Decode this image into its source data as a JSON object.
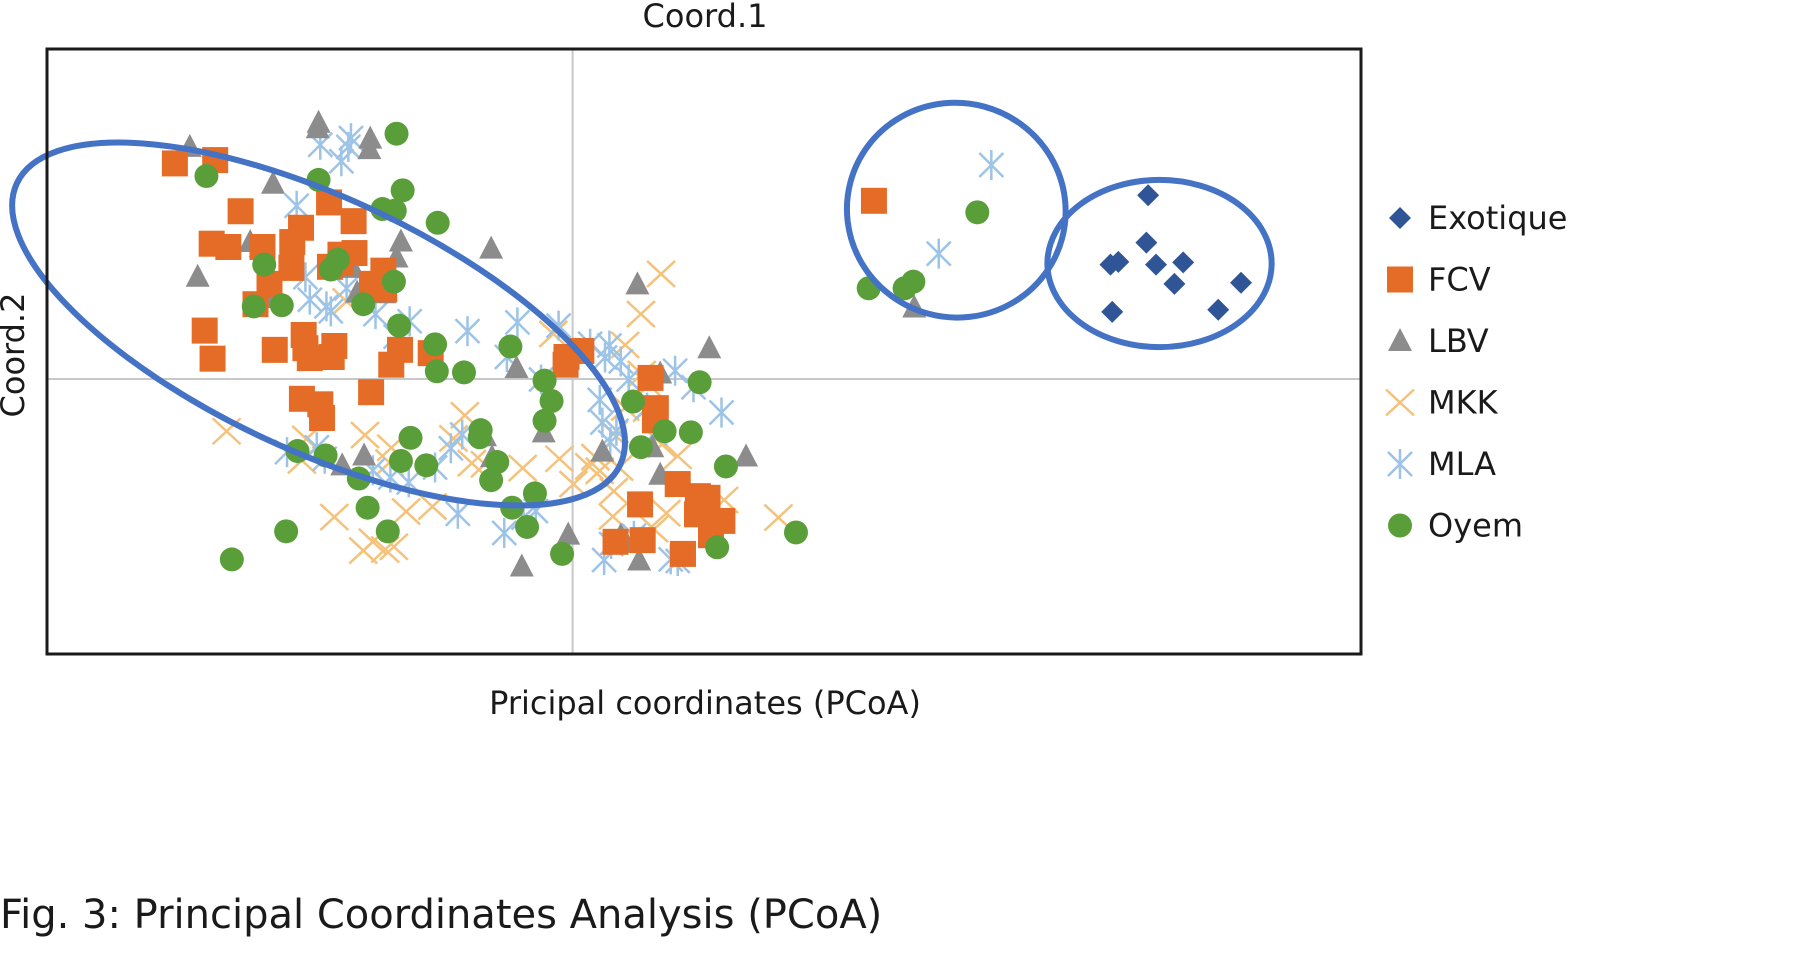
{
  "caption": "Fig. 3: Principal Coordinates Analysis (PCoA)",
  "chart_data": {
    "type": "scatter",
    "title": "Coord.1",
    "xlabel": "Pricipal coordinates (PCoA)",
    "ylabel": "Coord.2",
    "xlim": [
      -0.6,
      0.9
    ],
    "ylim": [
      -0.5,
      0.6
    ],
    "axis_lines_at": [
      0,
      0
    ],
    "tick_labels": false,
    "grid": false,
    "legend": "right",
    "group_ellipse_color": "#4472c4",
    "groups": [
      {
        "cx": -0.29,
        "cy": 0.1,
        "rx": 0.38,
        "ry": 0.23,
        "angle": 25
      },
      {
        "cx": 0.438,
        "cy": 0.307,
        "rx": 0.125,
        "ry": 0.195,
        "angle": 15
      },
      {
        "cx": 0.67,
        "cy": 0.21,
        "rx": 0.128,
        "ry": 0.152,
        "angle": 0
      }
    ],
    "series": [
      {
        "name": "Exotique",
        "color": "#2f5597",
        "marker": "diamond",
        "points": [
          [
            0.657,
            0.334
          ],
          [
            0.614,
            0.208
          ],
          [
            0.623,
            0.213
          ],
          [
            0.655,
            0.248
          ],
          [
            0.666,
            0.208
          ],
          [
            0.697,
            0.212
          ],
          [
            0.687,
            0.173
          ],
          [
            0.763,
            0.175
          ],
          [
            0.737,
            0.126
          ],
          [
            0.616,
            0.122
          ]
        ]
      },
      {
        "name": "FCV",
        "color": "#e46c27",
        "marker": "square",
        "points": [
          [
            -0.454,
            0.392
          ],
          [
            -0.408,
            0.398
          ],
          [
            -0.379,
            0.305
          ],
          [
            -0.412,
            0.246
          ],
          [
            -0.393,
            0.24
          ],
          [
            -0.354,
            0.24
          ],
          [
            -0.32,
            0.249
          ],
          [
            -0.31,
            0.275
          ],
          [
            -0.321,
            0.202
          ],
          [
            -0.346,
            0.173
          ],
          [
            -0.362,
            0.136
          ],
          [
            -0.42,
            0.088
          ],
          [
            -0.411,
            0.037
          ],
          [
            -0.278,
            0.321
          ],
          [
            -0.265,
            0.226
          ],
          [
            -0.249,
            0.229
          ],
          [
            -0.25,
            0.287
          ],
          [
            -0.265,
            0.212
          ],
          [
            -0.215,
            0.163
          ],
          [
            -0.216,
            0.197
          ],
          [
            -0.221,
            0.165
          ],
          [
            -0.229,
            0.173
          ],
          [
            -0.305,
            0.056
          ],
          [
            -0.307,
            0.08
          ],
          [
            -0.34,
            0.053
          ],
          [
            -0.272,
            0.06
          ],
          [
            -0.275,
            0.04
          ],
          [
            -0.207,
            0.026
          ],
          [
            -0.197,
            0.053
          ],
          [
            -0.162,
            0.047
          ],
          [
            -0.23,
            -0.024
          ],
          [
            -0.286,
            -0.071
          ],
          [
            -0.288,
            -0.046
          ],
          [
            -0.3,
            0.038
          ],
          [
            -0.309,
            -0.036
          ],
          [
            -0.007,
            0.04
          ],
          [
            0.01,
            0.051
          ],
          [
            -0.008,
            0.026
          ],
          [
            0.089,
            0.002
          ],
          [
            0.095,
            -0.053
          ],
          [
            0.094,
            -0.075
          ],
          [
            0.12,
            -0.191
          ],
          [
            0.143,
            -0.213
          ],
          [
            0.077,
            -0.228
          ],
          [
            0.08,
            -0.293
          ],
          [
            0.049,
            -0.296
          ],
          [
            0.126,
            -0.318
          ],
          [
            0.158,
            -0.284
          ],
          [
            0.171,
            -0.258
          ],
          [
            0.142,
            -0.246
          ],
          [
            0.154,
            -0.216
          ],
          [
            0.344,
            0.324
          ],
          [
            -0.277,
            0.204
          ]
        ]
      },
      {
        "name": "LBV",
        "color": "#8c8c8c",
        "marker": "triangle",
        "points": [
          [
            -0.29,
            0.466
          ],
          [
            -0.291,
            0.456
          ],
          [
            -0.231,
            0.437
          ],
          [
            -0.232,
            0.418
          ],
          [
            -0.437,
            0.422
          ],
          [
            -0.342,
            0.355
          ],
          [
            -0.368,
            0.249
          ],
          [
            -0.356,
            0.24
          ],
          [
            -0.428,
            0.186
          ],
          [
            -0.347,
            0.147
          ],
          [
            -0.251,
            0.202
          ],
          [
            -0.246,
            0.157
          ],
          [
            -0.201,
            0.221
          ],
          [
            -0.196,
            0.25
          ],
          [
            -0.215,
            0.156
          ],
          [
            -0.093,
            0.237
          ],
          [
            -0.064,
            0.02
          ],
          [
            -0.009,
            0.022
          ],
          [
            -0.033,
            -0.097
          ],
          [
            -0.1,
            -0.104
          ],
          [
            -0.263,
            -0.157
          ],
          [
            -0.238,
            -0.139
          ],
          [
            -0.092,
            -0.142
          ],
          [
            0.034,
            -0.132
          ],
          [
            0.1,
            -0.174
          ],
          [
            0.091,
            -0.124
          ],
          [
            0.1,
            0.01
          ],
          [
            0.074,
            0.172
          ],
          [
            0.156,
            0.056
          ],
          [
            0.198,
            -0.141
          ],
          [
            -0.005,
            -0.283
          ],
          [
            0.055,
            -0.285
          ],
          [
            0.061,
            -0.298
          ],
          [
            -0.058,
            -0.341
          ],
          [
            0.39,
            0.13
          ],
          [
            0.076,
            -0.33
          ]
        ]
      },
      {
        "name": "MKK",
        "color": "#f4c27a",
        "marker": "x",
        "points": [
          [
            0.101,
            0.191
          ],
          [
            0.078,
            0.118
          ],
          [
            -0.022,
            0.082
          ],
          [
            0.06,
            0.062
          ],
          [
            0.079,
            0.009
          ],
          [
            0.087,
            -0.011
          ],
          [
            0.06,
            -0.052
          ],
          [
            0.085,
            -0.054
          ],
          [
            0.047,
            -0.1
          ],
          [
            0.031,
            -0.167
          ],
          [
            0.053,
            -0.161
          ],
          [
            0.047,
            -0.204
          ],
          [
            -0.237,
            -0.102
          ],
          [
            -0.207,
            -0.125
          ],
          [
            -0.209,
            -0.152
          ],
          [
            -0.123,
            -0.066
          ],
          [
            -0.136,
            -0.108
          ],
          [
            -0.115,
            -0.153
          ],
          [
            -0.16,
            -0.232
          ],
          [
            -0.19,
            -0.241
          ],
          [
            -0.228,
            -0.296
          ],
          [
            -0.204,
            -0.305
          ],
          [
            -0.239,
            -0.312
          ],
          [
            -0.272,
            -0.251
          ],
          [
            -0.214,
            -0.31
          ],
          [
            -0.395,
            -0.095
          ],
          [
            -0.304,
            -0.109
          ],
          [
            0.046,
            -0.25
          ],
          [
            0.093,
            -0.273
          ],
          [
            0.107,
            -0.244
          ],
          [
            0.235,
            -0.252
          ],
          [
            0.173,
            -0.22
          ],
          [
            0.026,
            -0.142
          ],
          [
            -0.015,
            -0.145
          ],
          [
            -0.057,
            -0.162
          ],
          [
            0.001,
            -0.191
          ],
          [
            0.019,
            -0.159
          ],
          [
            0.102,
            -0.119
          ],
          [
            0.12,
            -0.14
          ],
          [
            -0.258,
            0.141
          ],
          [
            -0.309,
            -0.148
          ],
          [
            -0.1,
            -0.155
          ]
        ]
      },
      {
        "name": "MLA",
        "color": "#9dc3e6",
        "marker": "asterisk",
        "points": [
          [
            -0.264,
            0.396
          ],
          [
            -0.256,
            0.422
          ],
          [
            -0.288,
            0.426
          ],
          [
            -0.253,
            0.438
          ],
          [
            -0.315,
            0.315
          ],
          [
            -0.305,
            0.185
          ],
          [
            -0.3,
            0.144
          ],
          [
            -0.281,
            0.132
          ],
          [
            -0.276,
            0.123
          ],
          [
            -0.258,
            0.165
          ],
          [
            -0.225,
            0.118
          ],
          [
            -0.202,
            0.077
          ],
          [
            -0.186,
            0.105
          ],
          [
            -0.12,
            0.087
          ],
          [
            -0.063,
            0.103
          ],
          [
            -0.075,
            0.04
          ],
          [
            -0.016,
            0.097
          ],
          [
            -0.036,
            -0.001
          ],
          [
            0.02,
            0.064
          ],
          [
            0.037,
            0.039
          ],
          [
            0.042,
            0.061
          ],
          [
            0.055,
            0.032
          ],
          [
            0.064,
            -0.001
          ],
          [
            0.031,
            -0.038
          ],
          [
            0.034,
            -0.079
          ],
          [
            0.043,
            -0.115
          ],
          [
            0.05,
            -0.094
          ],
          [
            0.085,
            -0.052
          ],
          [
            0.094,
            -0.098
          ],
          [
            0.138,
            -0.015
          ],
          [
            0.117,
            0.015
          ],
          [
            0.17,
            -0.061
          ],
          [
            -0.326,
            -0.133
          ],
          [
            -0.292,
            -0.124
          ],
          [
            -0.283,
            -0.145
          ],
          [
            -0.228,
            -0.166
          ],
          [
            -0.208,
            -0.179
          ],
          [
            -0.187,
            -0.188
          ],
          [
            -0.157,
            -0.161
          ],
          [
            -0.139,
            -0.126
          ],
          [
            -0.126,
            -0.101
          ],
          [
            -0.078,
            -0.28
          ],
          [
            -0.056,
            -0.252
          ],
          [
            -0.042,
            -0.24
          ],
          [
            0.036,
            -0.329
          ],
          [
            0.044,
            -0.3
          ],
          [
            0.07,
            -0.285
          ],
          [
            0.112,
            -0.328
          ],
          [
            0.12,
            -0.331
          ],
          [
            -0.131,
            -0.245
          ],
          [
            0.418,
            0.228
          ],
          [
            0.478,
            0.389
          ]
        ]
      },
      {
        "name": "Oyem",
        "color": "#5a9e3a",
        "marker": "circle",
        "points": [
          [
            -0.201,
            0.446
          ],
          [
            -0.418,
            0.369
          ],
          [
            -0.29,
            0.362
          ],
          [
            -0.194,
            0.343
          ],
          [
            -0.217,
            0.309
          ],
          [
            -0.203,
            0.306
          ],
          [
            -0.154,
            0.284
          ],
          [
            -0.268,
            0.217
          ],
          [
            -0.276,
            0.199
          ],
          [
            -0.204,
            0.177
          ],
          [
            -0.352,
            0.208
          ],
          [
            -0.239,
            0.136
          ],
          [
            -0.364,
            0.132
          ],
          [
            -0.332,
            0.134
          ],
          [
            -0.198,
            0.097
          ],
          [
            -0.157,
            0.063
          ],
          [
            -0.071,
            0.059
          ],
          [
            -0.124,
            0.012
          ],
          [
            -0.155,
            0.014
          ],
          [
            -0.032,
            -0.003
          ],
          [
            -0.024,
            -0.04
          ],
          [
            -0.032,
            -0.076
          ],
          [
            -0.105,
            -0.093
          ],
          [
            -0.106,
            -0.106
          ],
          [
            -0.185,
            -0.107
          ],
          [
            -0.196,
            -0.149
          ],
          [
            -0.282,
            -0.139
          ],
          [
            -0.314,
            -0.131
          ],
          [
            -0.244,
            -0.181
          ],
          [
            -0.167,
            -0.157
          ],
          [
            -0.086,
            -0.151
          ],
          [
            -0.093,
            -0.184
          ],
          [
            -0.043,
            -0.208
          ],
          [
            -0.069,
            -0.234
          ],
          [
            -0.052,
            -0.269
          ],
          [
            -0.012,
            -0.318
          ],
          [
            0.105,
            -0.095
          ],
          [
            0.069,
            -0.041
          ],
          [
            0.078,
            -0.124
          ],
          [
            0.145,
            -0.006
          ],
          [
            0.135,
            -0.097
          ],
          [
            0.175,
            -0.159
          ],
          [
            -0.234,
            -0.234
          ],
          [
            -0.327,
            -0.277
          ],
          [
            -0.389,
            -0.328
          ],
          [
            0.165,
            -0.306
          ],
          [
            0.255,
            -0.279
          ],
          [
            -0.211,
            -0.277
          ],
          [
            0.462,
            0.303
          ],
          [
            0.379,
            0.165
          ],
          [
            0.389,
            0.177
          ],
          [
            0.338,
            0.165
          ]
        ]
      }
    ]
  }
}
